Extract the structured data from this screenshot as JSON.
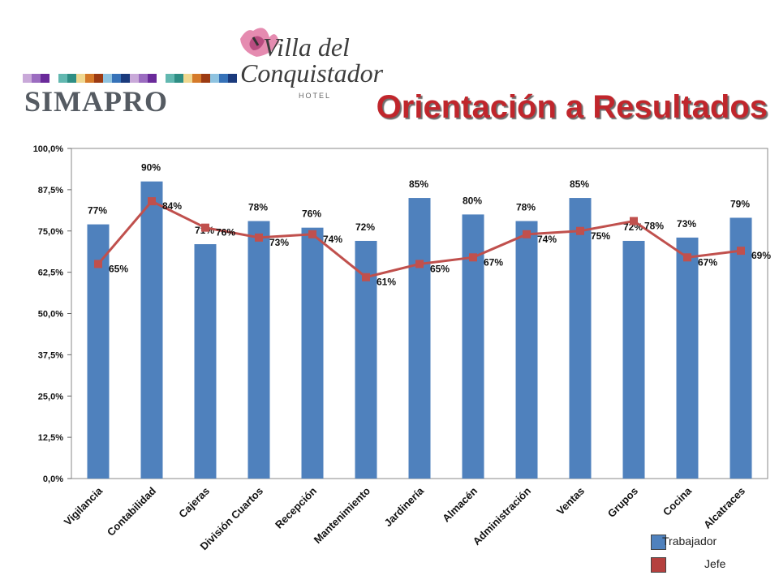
{
  "header": {
    "brand": "SIMAPRO",
    "logo": {
      "line1": "Villa del",
      "line2": "Conquistador",
      "sub": "HOTEL"
    },
    "color_strip": [
      "#c9a9d9",
      "#9b6cc0",
      "#6a2a9a",
      "#ffffff",
      "#62b8b0",
      "#2e8e84",
      "#f0d890",
      "#d57a2a",
      "#9c3a12",
      "#8fc3e0",
      "#3672b8",
      "#1a3a7c",
      "#c9a9d9",
      "#9b6cc0",
      "#6a2a9a",
      "#ffffff",
      "#62b8b0",
      "#2e8e84",
      "#f0d890",
      "#d57a2a",
      "#9c3a12",
      "#8fc3e0",
      "#3672b8",
      "#1a3a7c"
    ]
  },
  "chart_data": {
    "type": "bar",
    "title": "Orientación a Resultados",
    "categories": [
      "Vigilancia",
      "Contabilidad",
      "Cajeras",
      "División Cuartos",
      "Recepción",
      "Mantenimiento",
      "Jardinería",
      "Almacén",
      "Administración",
      "Ventas",
      "Grupos",
      "Cocina",
      "Alcatraces"
    ],
    "ylim": [
      0,
      100
    ],
    "yticks": [
      "0,0%",
      "12,5%",
      "25,0%",
      "37,5%",
      "50,0%",
      "62,5%",
      "75,0%",
      "87,5%",
      "100,0%"
    ],
    "grid": false,
    "legend_position": "bottom-right",
    "series": [
      {
        "name": "Trabajador",
        "type": "bar",
        "color": "#4f81bd",
        "values": [
          77,
          90,
          71,
          78,
          76,
          72,
          85,
          80,
          78,
          85,
          72,
          73,
          79
        ],
        "labels": [
          "77%",
          "90%",
          "71%",
          "78%",
          "76%",
          "72%",
          "85%",
          "80%",
          "78%",
          "85%",
          "72%",
          "73%",
          "79%"
        ]
      },
      {
        "name": "Jefe",
        "type": "line",
        "color": "#c0504d",
        "values": [
          65,
          84,
          76,
          73,
          74,
          61,
          65,
          67,
          74,
          75,
          78,
          67,
          69
        ],
        "labels": [
          "65%",
          "84%",
          "76%",
          "73%",
          "74%",
          "61%",
          "65%",
          "67%",
          "74%",
          "75%",
          "78%",
          "67%",
          "69%"
        ]
      }
    ]
  }
}
